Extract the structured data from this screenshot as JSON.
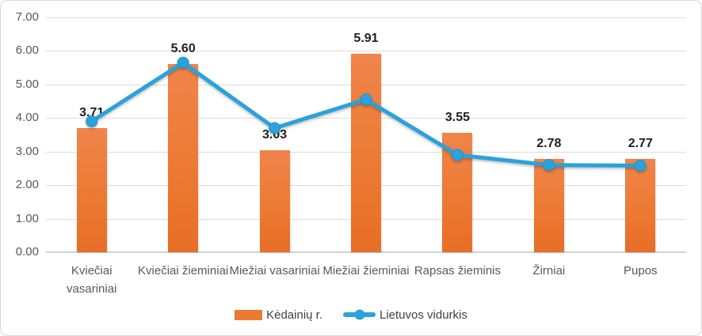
{
  "chart_data": {
    "type": "combo_bar_line",
    "categories": [
      "Kviečiai vasariniai",
      "Kviečiai žieminiai",
      "Miežiai vasariniai",
      "Miežiai žieminiai",
      "Rapsas žieminis",
      "Žirniai",
      "Pupos"
    ],
    "series": [
      {
        "name": "Kėdainių r.",
        "type": "bar",
        "color": "#EC7A33",
        "values": [
          3.71,
          5.6,
          3.03,
          5.91,
          3.55,
          2.78,
          2.77
        ],
        "data_labels": [
          "3.71",
          "5.60",
          "3.03",
          "5.91",
          "3.55",
          "2.78",
          "2.77"
        ]
      },
      {
        "name": "Lietuvos vidurkis",
        "type": "line",
        "color": "#2AA2DB",
        "values": [
          3.9,
          5.65,
          3.7,
          4.55,
          2.9,
          2.6,
          2.58
        ]
      }
    ],
    "y_axis": {
      "min": 0,
      "max": 7,
      "step": 1,
      "tick_labels": [
        "0.00",
        "1.00",
        "2.00",
        "3.00",
        "4.00",
        "5.00",
        "6.00",
        "7.00"
      ]
    },
    "grid": true,
    "legend_position": "bottom",
    "colors": {
      "bar": "#EC7A33",
      "line": "#2AA2DB",
      "gridline": "#DCDCDC",
      "axis_text": "#595959",
      "data_label_text": "#1F1F1F",
      "frame_border": "#D9D9D9"
    }
  }
}
